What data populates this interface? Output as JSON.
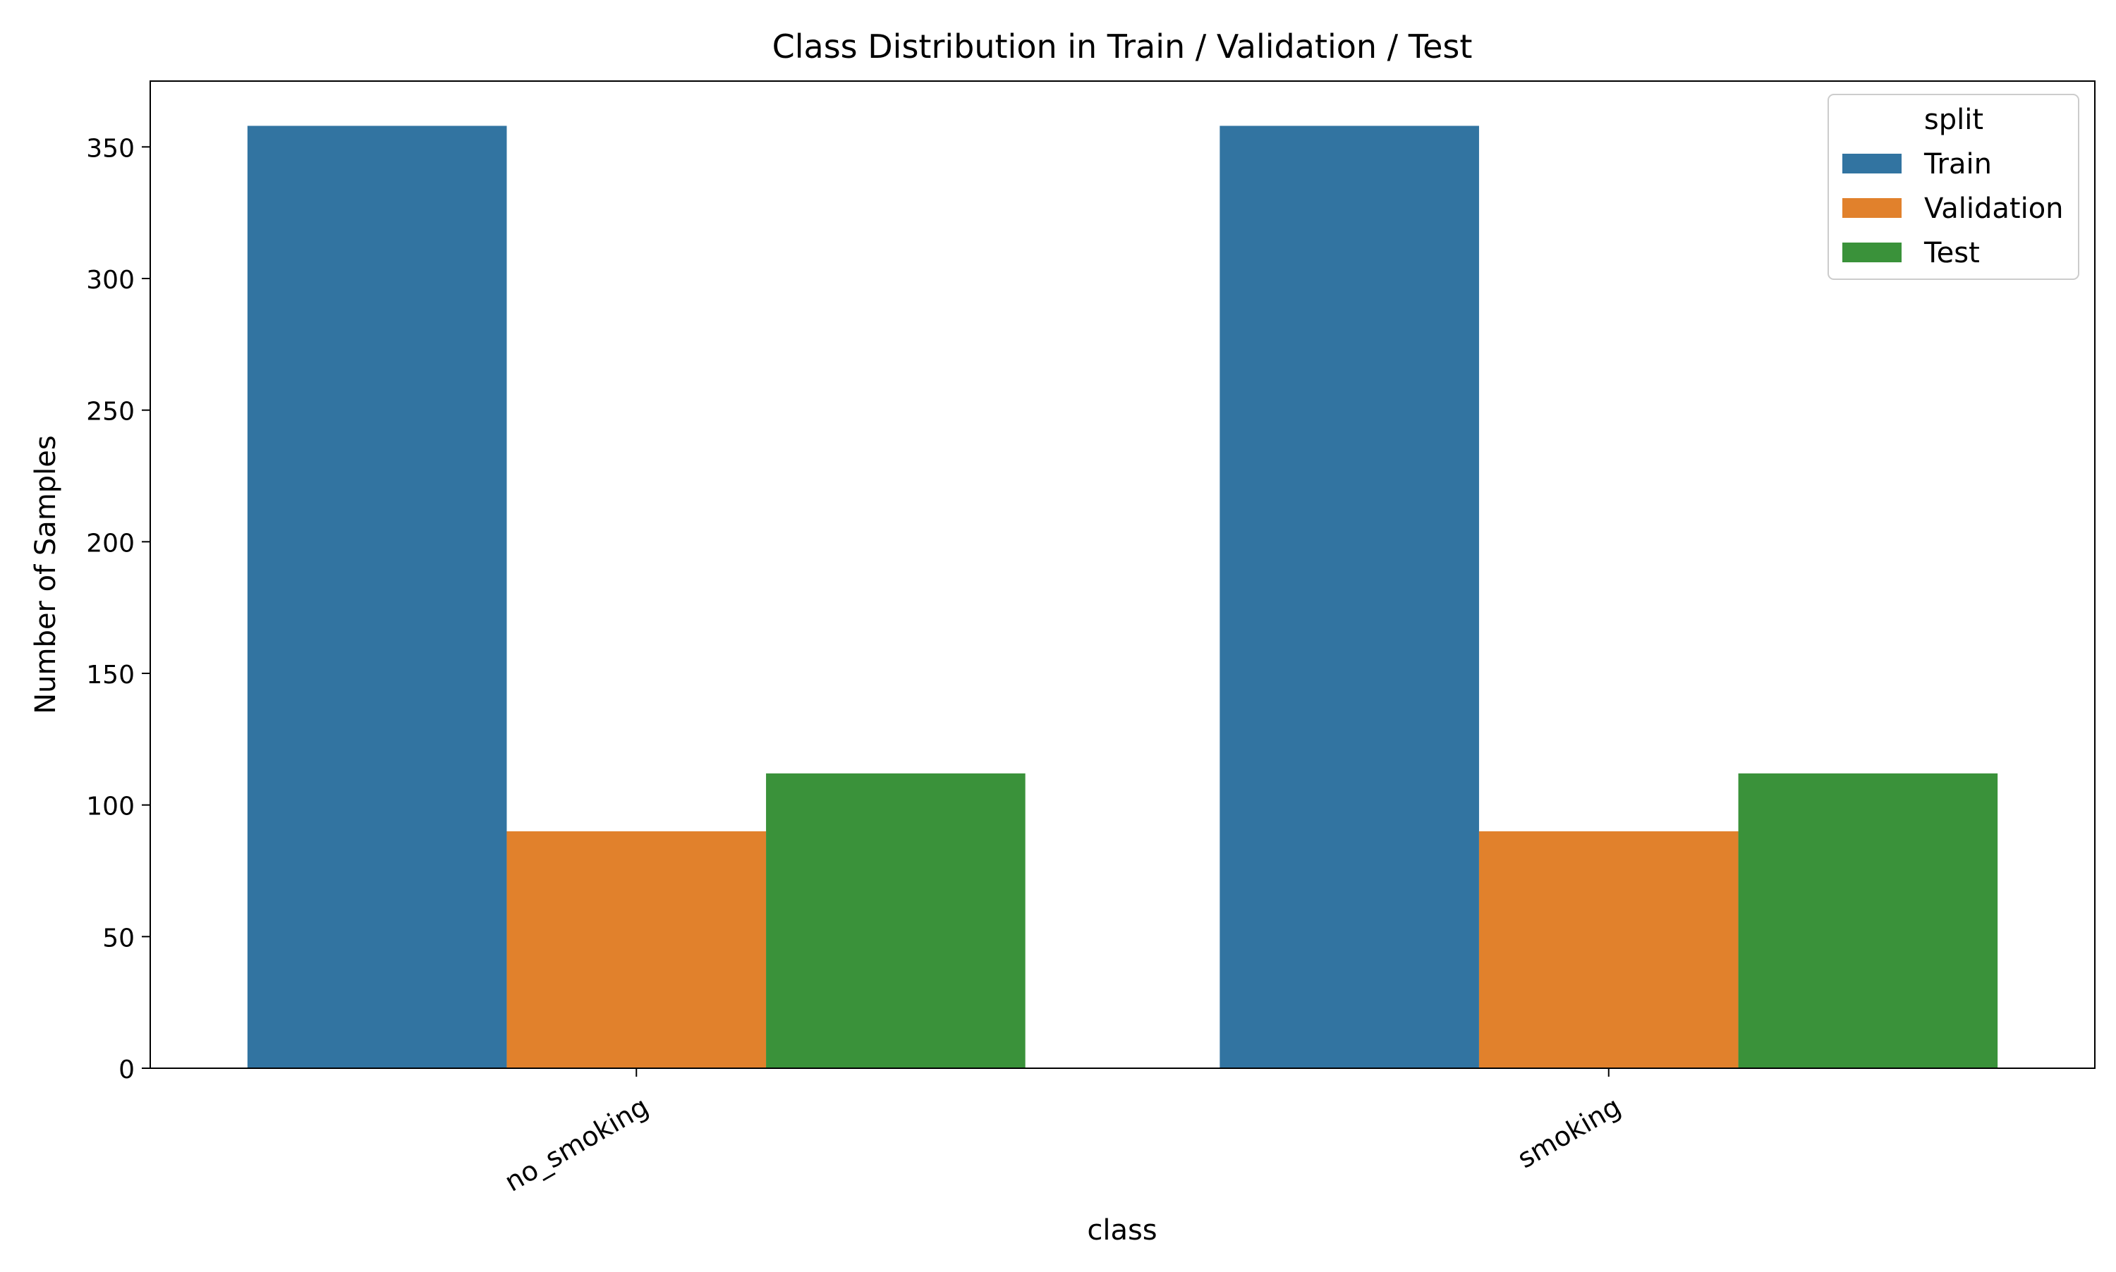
{
  "chart_data": {
    "type": "bar",
    "title": "Class Distribution in Train / Validation / Test",
    "xlabel": "class",
    "ylabel": "Number of Samples",
    "categories": [
      "no_smoking",
      "smoking"
    ],
    "series": [
      {
        "name": "Train",
        "values": [
          358,
          358
        ],
        "color": "#3274a1"
      },
      {
        "name": "Validation",
        "values": [
          90,
          90
        ],
        "color": "#e1812c"
      },
      {
        "name": "Test",
        "values": [
          112,
          112
        ],
        "color": "#3a923a"
      }
    ],
    "ylim": [
      0,
      375
    ],
    "yticks": [
      0,
      50,
      100,
      150,
      200,
      250,
      300,
      350
    ],
    "grid": false,
    "legend": {
      "title": "split",
      "placement": "top-right"
    },
    "xtick_rotation_deg": 30
  }
}
